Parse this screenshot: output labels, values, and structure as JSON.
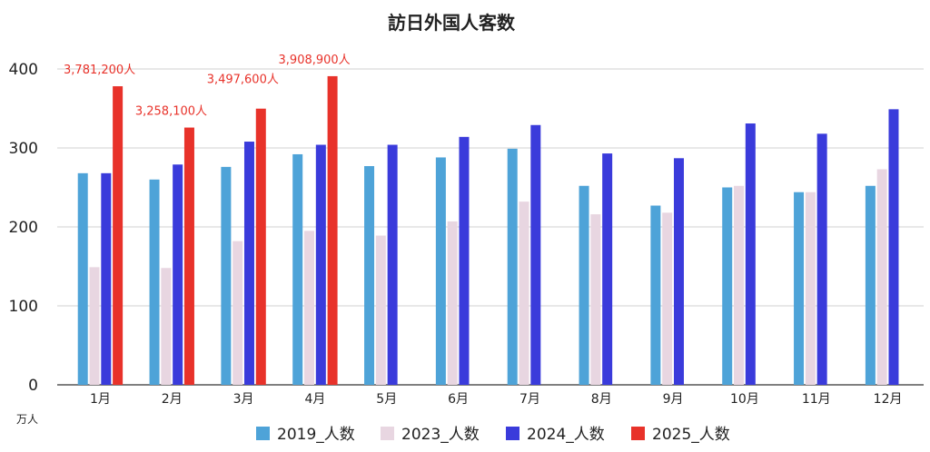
{
  "chart_data": {
    "type": "bar",
    "title": "訪日外国人客数",
    "unit_label": "万人",
    "ylim": [
      0,
      400
    ],
    "yticks": [
      "0",
      "100",
      "200",
      "300",
      "400"
    ],
    "grid": true,
    "legend_position": "bottom",
    "categories": [
      "1月",
      "2月",
      "3月",
      "4月",
      "5月",
      "6月",
      "7月",
      "8月",
      "9月",
      "10月",
      "11月",
      "12月"
    ],
    "series": [
      {
        "name": "2019_人数",
        "color": "#4ea3d8",
        "values": [
          268,
          260,
          276,
          292,
          277,
          288,
          299,
          252,
          227,
          250,
          244,
          252
        ]
      },
      {
        "name": "2023_人数",
        "color": "#e8d6e1",
        "values": [
          149,
          148,
          182,
          195,
          189,
          207,
          232,
          216,
          218,
          252,
          244,
          273
        ]
      },
      {
        "name": "2024_人数",
        "color": "#3a3bdb",
        "values": [
          268,
          279,
          308,
          304,
          304,
          314,
          329,
          293,
          287,
          331,
          318,
          349
        ]
      },
      {
        "name": "2025_人数",
        "color": "#e8322a",
        "values": [
          378.12,
          325.81,
          349.76,
          390.89,
          null,
          null,
          null,
          null,
          null,
          null,
          null,
          null
        ]
      }
    ],
    "data_labels": [
      {
        "category_index": 0,
        "series_index": 3,
        "text": "3,781,200人"
      },
      {
        "category_index": 1,
        "series_index": 3,
        "text": "3,258,100人"
      },
      {
        "category_index": 2,
        "series_index": 3,
        "text": "3,497,600人"
      },
      {
        "category_index": 3,
        "series_index": 3,
        "text": "3,908,900人"
      }
    ],
    "data_label_color": "#e8322a"
  }
}
